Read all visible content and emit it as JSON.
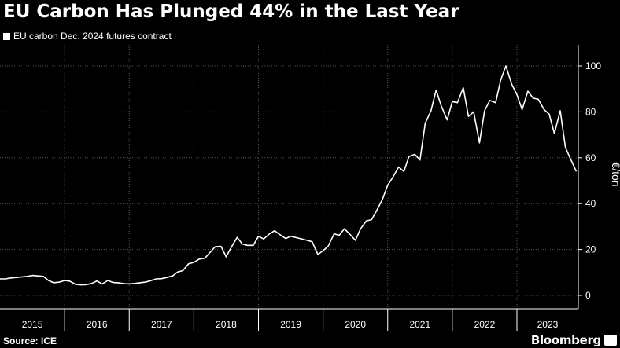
{
  "header": {
    "title": "EU Carbon Has Plunged 44% in the Last Year",
    "legend_label": "EU carbon Dec. 2024 futures contract"
  },
  "footer": {
    "source": "Source: ICE",
    "brand": "Bloomberg"
  },
  "colors": {
    "background": "#000000",
    "line": "#ffffff",
    "grid": "#555555"
  },
  "chart_data": {
    "type": "line",
    "title": "EU Carbon Has Plunged 44% in the Last Year",
    "ylabel": "€/ton",
    "xlabel": "",
    "ylim": [
      0,
      100
    ],
    "xlim": [
      2015.0,
      2023.95
    ],
    "yticks": [
      0,
      20,
      40,
      60,
      80,
      100
    ],
    "ytick_labels": [
      "0",
      "20",
      "40",
      "60",
      "80",
      "100"
    ],
    "xtick_labels": [
      "2015",
      "2016",
      "2017",
      "2018",
      "2019",
      "2020",
      "2021",
      "2022",
      "2023"
    ],
    "grid": true,
    "legend": "top-left",
    "series": [
      {
        "name": "EU carbon Dec. 2024 futures contract",
        "x": [
          2015.0,
          2015.08,
          2015.17,
          2015.25,
          2015.33,
          2015.42,
          2015.5,
          2015.58,
          2015.67,
          2015.75,
          2015.83,
          2015.92,
          2016.0,
          2016.08,
          2016.17,
          2016.25,
          2016.33,
          2016.42,
          2016.5,
          2016.58,
          2016.67,
          2016.75,
          2016.83,
          2016.92,
          2017.0,
          2017.08,
          2017.17,
          2017.25,
          2017.33,
          2017.42,
          2017.5,
          2017.58,
          2017.67,
          2017.75,
          2017.83,
          2017.92,
          2018.0,
          2018.08,
          2018.17,
          2018.25,
          2018.33,
          2018.42,
          2018.5,
          2018.58,
          2018.67,
          2018.75,
          2018.83,
          2018.92,
          2019.0,
          2019.08,
          2019.17,
          2019.25,
          2019.33,
          2019.42,
          2019.5,
          2019.58,
          2019.67,
          2019.75,
          2019.83,
          2019.92,
          2020.0,
          2020.08,
          2020.17,
          2020.25,
          2020.33,
          2020.42,
          2020.5,
          2020.58,
          2020.67,
          2020.75,
          2020.83,
          2020.92,
          2021.0,
          2021.08,
          2021.17,
          2021.25,
          2021.33,
          2021.42,
          2021.5,
          2021.58,
          2021.67,
          2021.75,
          2021.83,
          2021.92,
          2022.0,
          2022.08,
          2022.17,
          2022.25,
          2022.33,
          2022.42,
          2022.5,
          2022.58,
          2022.67,
          2022.75,
          2022.83,
          2022.92,
          2023.0,
          2023.08,
          2023.17,
          2023.25,
          2023.33,
          2023.42,
          2023.5,
          2023.58,
          2023.67,
          2023.75,
          2023.83,
          2023.92
        ],
        "values": [
          7.2,
          7.2,
          7.6,
          7.8,
          8.0,
          8.3,
          8.7,
          8.5,
          8.3,
          6.5,
          5.5,
          5.8,
          6.5,
          6.2,
          4.8,
          4.6,
          4.7,
          5.2,
          6.3,
          5.0,
          6.5,
          5.6,
          5.5,
          5.1,
          5.0,
          5.2,
          5.5,
          5.8,
          6.4,
          7.2,
          7.3,
          7.8,
          8.5,
          10.2,
          10.8,
          13.8,
          14.4,
          15.8,
          16.2,
          18.7,
          21.2,
          21.4,
          16.8,
          21.0,
          25.3,
          22.4,
          21.8,
          21.8,
          25.8,
          24.6,
          26.8,
          28.2,
          26.5,
          24.8,
          25.8,
          25.2,
          24.6,
          24.0,
          23.4,
          17.8,
          19.5,
          21.5,
          26.8,
          26.2,
          29.0,
          26.5,
          24.0,
          29.0,
          32.5,
          33.0,
          37.0,
          42.0,
          48.0,
          51.5,
          56.0,
          54.0,
          60.5,
          61.5,
          59.0,
          75.0,
          80.5,
          89.5,
          82.5,
          76.5,
          84.5,
          84.0,
          90.5,
          78.0,
          80.0,
          66.5,
          80.5,
          85.0,
          84.0,
          94.0,
          100.0,
          92.0,
          87.5,
          81.0,
          89.0,
          86.0,
          85.5,
          81.0,
          79.0,
          70.5,
          80.5,
          64.5,
          59.5,
          54.0
        ]
      }
    ]
  }
}
